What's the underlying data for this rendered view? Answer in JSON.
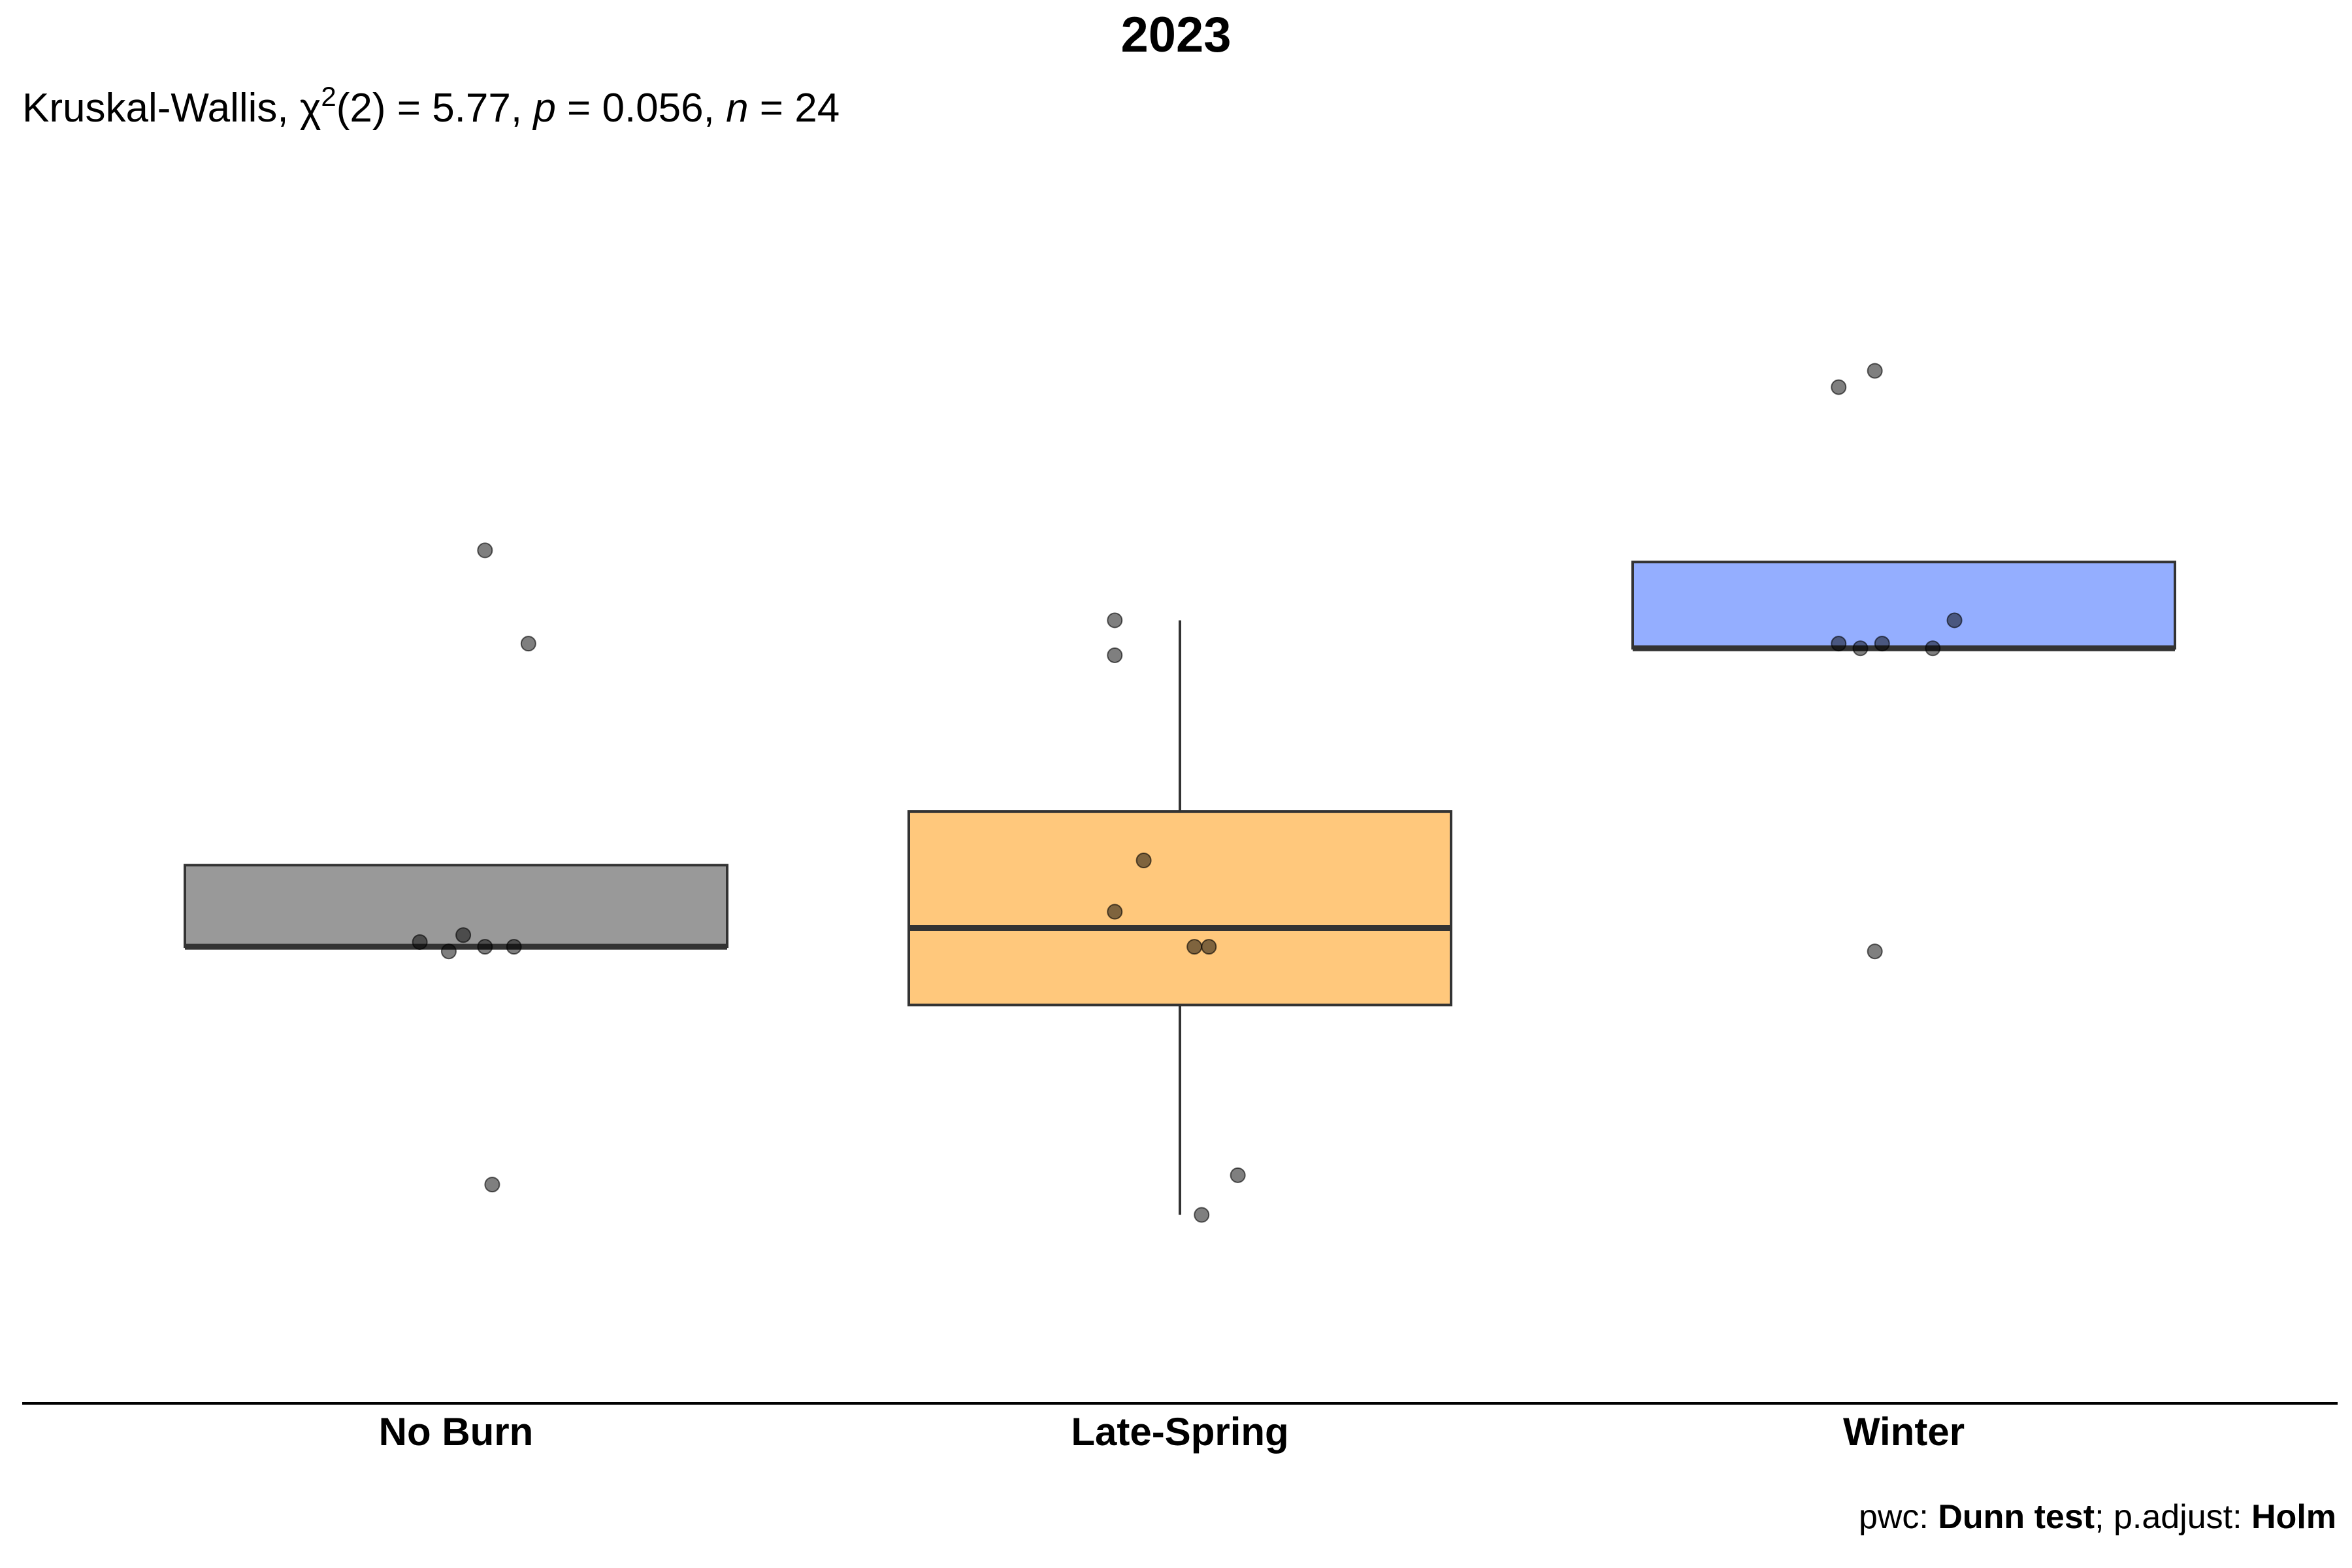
{
  "chart_data": {
    "type": "boxplot",
    "title": "2023",
    "subtitle": {
      "test": "Kruskal-Wallis, ",
      "chi": "χ",
      "chi_sup": "2",
      "df_stat": "(2) = 5.77, ",
      "p_label": "p",
      "p_value": " = 0.056, ",
      "n_label": "n",
      "n_value": " = 24"
    },
    "caption": {
      "pwc_label": "pwc: ",
      "pwc_method": "Dunn test",
      "adjust_label": "; p.adjust: ",
      "adjust_method": "Holm"
    },
    "categories": [
      "No Burn",
      "Late-Spring",
      "Winter"
    ],
    "xlabel": "",
    "ylabel": "",
    "ylim": [
      -1.95,
      3.5
    ],
    "y_axis_visible": false,
    "grid": false,
    "legend": "none",
    "colors": [
      "#999999",
      "#ffc87c",
      "#94aeff"
    ],
    "boxes": [
      {
        "name": "No Burn",
        "q1": 0.0,
        "median": 0.0,
        "q3": 0.35,
        "whisker_low": 0.0,
        "whisker_high": 0.35,
        "points": [
          {
            "jitter": 0.1,
            "y": 1.3
          },
          {
            "jitter": 0.04,
            "y": 1.7
          },
          {
            "jitter": 0.01,
            "y": 0.05
          },
          {
            "jitter": -0.05,
            "y": 0.02
          },
          {
            "jitter": -0.01,
            "y": -0.02
          },
          {
            "jitter": 0.04,
            "y": 0.0
          },
          {
            "jitter": 0.08,
            "y": 0.0
          },
          {
            "jitter": 0.05,
            "y": -1.02
          }
        ]
      },
      {
        "name": "Late-Spring",
        "q1": -0.25,
        "median": 0.08,
        "q3": 0.58,
        "whisker_low": -1.15,
        "whisker_high": 1.4,
        "points": [
          {
            "jitter": -0.09,
            "y": 1.4
          },
          {
            "jitter": -0.09,
            "y": 1.25
          },
          {
            "jitter": -0.05,
            "y": 0.37
          },
          {
            "jitter": -0.09,
            "y": 0.15
          },
          {
            "jitter": 0.02,
            "y": 0.0
          },
          {
            "jitter": 0.04,
            "y": 0.0
          },
          {
            "jitter": 0.08,
            "y": -0.98
          },
          {
            "jitter": 0.03,
            "y": -1.15
          }
        ]
      },
      {
        "name": "Winter",
        "q1": 1.28,
        "median": 1.28,
        "q3": 1.65,
        "whisker_low": 1.28,
        "whisker_high": 1.65,
        "points": [
          {
            "jitter": -0.09,
            "y": 2.4
          },
          {
            "jitter": -0.04,
            "y": 2.47
          },
          {
            "jitter": 0.07,
            "y": 1.4
          },
          {
            "jitter": -0.09,
            "y": 1.3
          },
          {
            "jitter": -0.06,
            "y": 1.28
          },
          {
            "jitter": -0.03,
            "y": 1.3
          },
          {
            "jitter": 0.04,
            "y": 1.28
          },
          {
            "jitter": -0.04,
            "y": -0.02
          }
        ]
      }
    ]
  }
}
